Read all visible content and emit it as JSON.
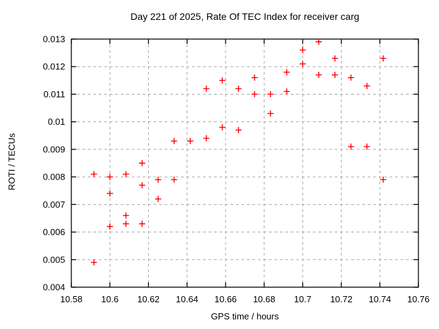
{
  "colors": {
    "background": "#ffffff",
    "axis": "#000000",
    "text": "#000000",
    "grid": "#a8a8a8",
    "marker": "#ff0000"
  },
  "chart_data": {
    "type": "scatter",
    "title": "Day 221 of 2025, Rate Of TEC Index for receiver carg",
    "xlabel": "GPS time / hours",
    "ylabel": "ROTI / TECUs",
    "xlim": [
      10.58,
      10.76
    ],
    "ylim": [
      0.004,
      0.013
    ],
    "xtick_values": [
      10.58,
      10.6,
      10.62,
      10.64,
      10.66,
      10.68,
      10.7,
      10.72,
      10.74,
      10.76
    ],
    "xtick_labels": [
      "10.58",
      "10.6",
      "10.62",
      "10.64",
      "10.66",
      "10.68",
      "10.7",
      "10.72",
      "10.74",
      "10.76"
    ],
    "ytick_values": [
      0.004,
      0.005,
      0.006,
      0.007,
      0.008,
      0.009,
      0.01,
      0.011,
      0.012,
      0.013
    ],
    "ytick_labels": [
      "0.004",
      "0.005",
      "0.006",
      "0.007",
      "0.008",
      "0.009",
      "0.01",
      "0.011",
      "0.012",
      "0.013"
    ],
    "grid": true,
    "legend": "none",
    "marker": {
      "shape": "plus",
      "color": "#ff0000",
      "size": 9
    },
    "series": [
      {
        "name": "ROTI",
        "points": [
          [
            10.5917,
            0.0081
          ],
          [
            10.5917,
            0.0049
          ],
          [
            10.6,
            0.008
          ],
          [
            10.6,
            0.0074
          ],
          [
            10.6,
            0.0062
          ],
          [
            10.6083,
            0.0081
          ],
          [
            10.6083,
            0.0066
          ],
          [
            10.6083,
            0.0063
          ],
          [
            10.6167,
            0.0085
          ],
          [
            10.6167,
            0.0077
          ],
          [
            10.6167,
            0.0063
          ],
          [
            10.625,
            0.0079
          ],
          [
            10.625,
            0.0072
          ],
          [
            10.6333,
            0.0093
          ],
          [
            10.6333,
            0.0079
          ],
          [
            10.6417,
            0.0093
          ],
          [
            10.65,
            0.0112
          ],
          [
            10.65,
            0.0094
          ],
          [
            10.6583,
            0.0115
          ],
          [
            10.6583,
            0.0098
          ],
          [
            10.6667,
            0.0112
          ],
          [
            10.6667,
            0.0097
          ],
          [
            10.675,
            0.0116
          ],
          [
            10.675,
            0.011
          ],
          [
            10.6833,
            0.011
          ],
          [
            10.6833,
            0.0103
          ],
          [
            10.6917,
            0.0118
          ],
          [
            10.6917,
            0.0111
          ],
          [
            10.7,
            0.0126
          ],
          [
            10.7,
            0.0121
          ],
          [
            10.7083,
            0.0129
          ],
          [
            10.7083,
            0.0117
          ],
          [
            10.7167,
            0.0123
          ],
          [
            10.7167,
            0.0117
          ],
          [
            10.725,
            0.0116
          ],
          [
            10.725,
            0.0091
          ],
          [
            10.7333,
            0.0113
          ],
          [
            10.7333,
            0.0091
          ],
          [
            10.7417,
            0.0123
          ],
          [
            10.7417,
            0.0079
          ]
        ]
      }
    ]
  }
}
